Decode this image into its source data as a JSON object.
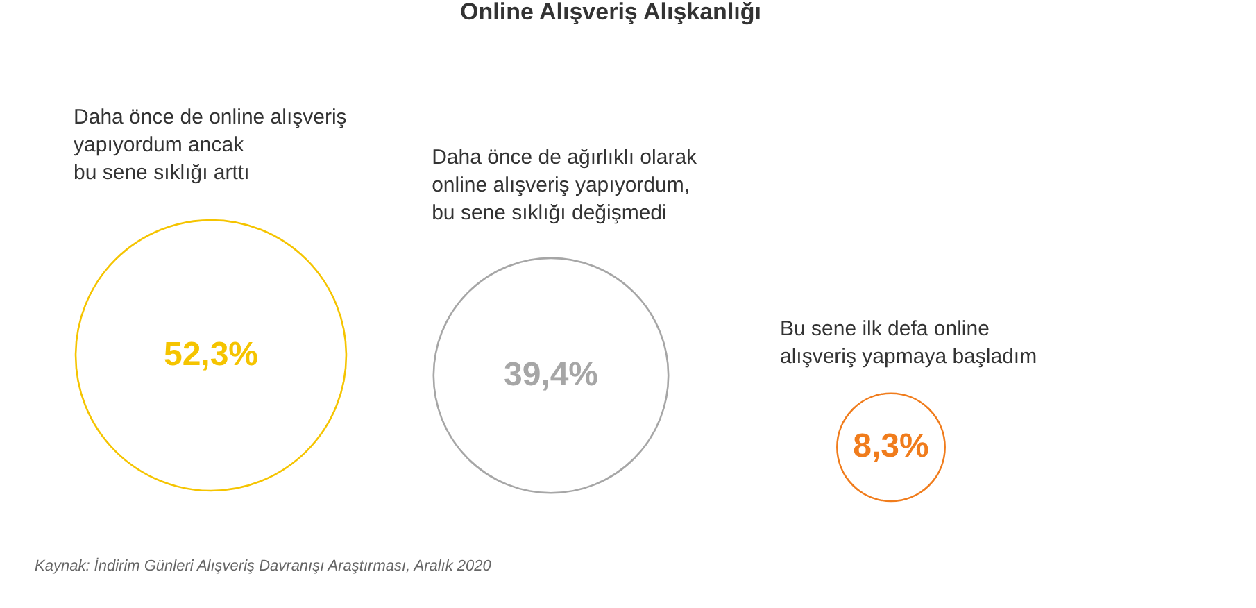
{
  "chart_data": {
    "type": "other",
    "title": "Online Alışveriş Alışkanlığı",
    "categories": [
      "Daha önce de online alışveriş\nyapıyordum ancak\nbu sene sıklığı arttı",
      "Daha önce de ağırlıklı olarak\nonline alışveriş yapıyordum,\nbu sene sıklığı değişmedi",
      "Bu sene ilk defa online\nalışveriş yapmaya başladım"
    ],
    "values": [
      52.3,
      39.4,
      8.3
    ],
    "value_labels": [
      "52,3%",
      "39,4%",
      "8,3%"
    ],
    "colors": [
      "#f5c400",
      "#a6a6a6",
      "#f07c1c"
    ],
    "annotations": [
      "Kaynak: İndirim Günleri Alışveriş Davranışı Araştırması, Aralık 2020"
    ]
  }
}
